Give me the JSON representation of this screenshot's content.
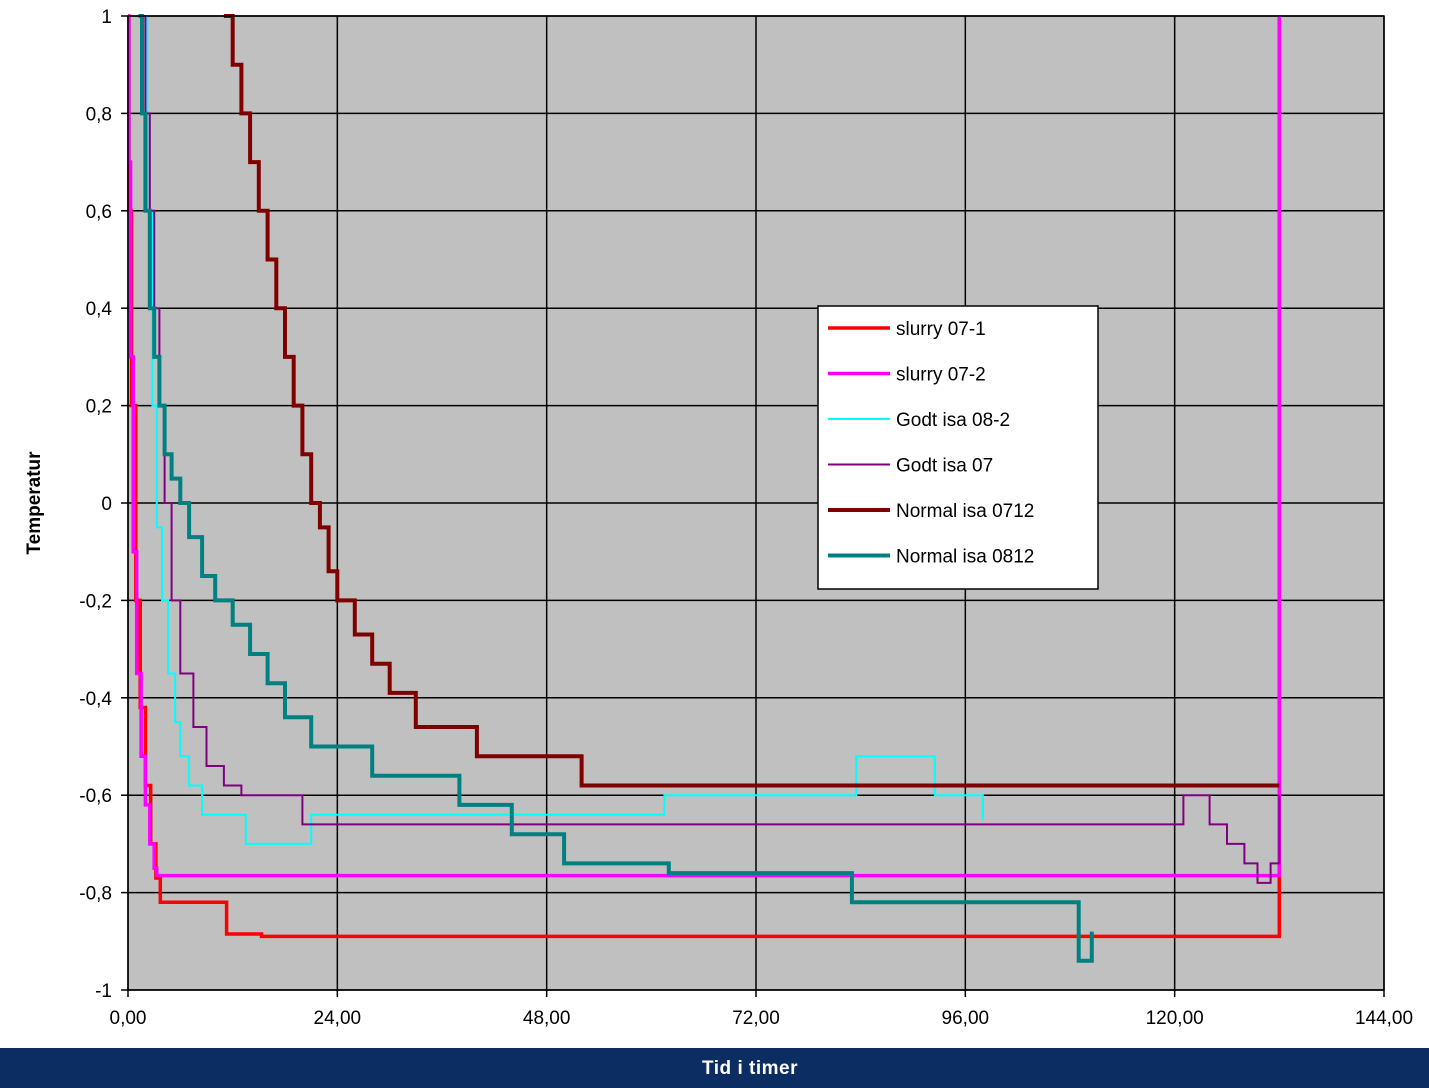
{
  "chart_data": {
    "type": "line",
    "xlabel": "Tid i timer",
    "ylabel": "Temperatur",
    "xlim": [
      0,
      144
    ],
    "ylim": [
      -1,
      1
    ],
    "x_ticks": [
      "0,00",
      "24,00",
      "48,00",
      "72,00",
      "96,00",
      "120,00",
      "144,00"
    ],
    "y_ticks": [
      "1",
      "0,8",
      "0,6",
      "0,4",
      "0,2",
      "0",
      "-0,2",
      "-0,4",
      "-0,6",
      "-0,8",
      "-1"
    ],
    "grid": true,
    "plot_background": "#c0c0c0",
    "legend_position": "center-right",
    "series": [
      {
        "name": "slurry 07-1",
        "color": "#ff0000",
        "x": [
          0,
          0.1,
          0.4,
          0.9,
          1.4,
          2.0,
          2.6,
          3.2,
          3.7,
          3.8,
          10.8,
          11.3,
          15.1,
          15.3,
          131.9,
          132.0
        ],
        "y": [
          1.0,
          0.6,
          0.2,
          -0.2,
          -0.42,
          -0.58,
          -0.7,
          -0.77,
          -0.82,
          -0.82,
          -0.82,
          -0.885,
          -0.885,
          -0.89,
          -0.89,
          1.0
        ]
      },
      {
        "name": "slurry 07-2",
        "color": "#ff00ff",
        "x": [
          0,
          0.1,
          0.3,
          0.6,
          1.0,
          1.5,
          2.0,
          2.5,
          3.0,
          3.3,
          131.9,
          132.0
        ],
        "y": [
          1.0,
          0.7,
          0.3,
          -0.1,
          -0.35,
          -0.52,
          -0.62,
          -0.7,
          -0.75,
          -0.765,
          -0.765,
          1.0
        ]
      },
      {
        "name": "Godt isa 08-2",
        "color": "#00ffff",
        "x": [
          1.8,
          2.2,
          2.8,
          3.3,
          3.9,
          4.6,
          5.4,
          6.0,
          7.0,
          8.5,
          11.0,
          13.5,
          17.5,
          21.0,
          58.0,
          61.5,
          82.0,
          83.5,
          90.0,
          92.5,
          96.0,
          98.0
        ],
        "y": [
          1.0,
          0.6,
          0.2,
          -0.05,
          -0.2,
          -0.35,
          -0.45,
          -0.52,
          -0.58,
          -0.64,
          -0.64,
          -0.7,
          -0.7,
          -0.64,
          -0.64,
          -0.6,
          -0.6,
          -0.52,
          -0.52,
          -0.6,
          -0.6,
          -0.65
        ]
      },
      {
        "name": "Godt isa 07",
        "color": "#800080",
        "x": [
          1.5,
          2.0,
          2.5,
          3.0,
          3.6,
          4.2,
          5.0,
          6.0,
          7.5,
          9.0,
          11.0,
          13.0,
          16.0,
          18.0,
          20.0,
          25.0,
          113.0,
          121.0,
          124.0,
          126.0,
          128.0,
          129.5,
          131.0,
          132.0
        ],
        "y": [
          1.0,
          0.8,
          0.6,
          0.4,
          0.2,
          0.0,
          -0.2,
          -0.35,
          -0.46,
          -0.54,
          -0.58,
          -0.6,
          -0.6,
          -0.6,
          -0.66,
          -0.66,
          -0.66,
          -0.6,
          -0.66,
          -0.7,
          -0.74,
          -0.78,
          -0.74,
          -0.6
        ]
      },
      {
        "name": "Normal isa 0712",
        "color": "#800000",
        "x": [
          11.0,
          12.0,
          13.0,
          14.0,
          15.0,
          16.0,
          17.0,
          18.0,
          19.0,
          20.0,
          21.0,
          22.0,
          23.0,
          24.0,
          26.0,
          28.0,
          30.0,
          33.0,
          36.0,
          40.0,
          46.0,
          50.0,
          52.0,
          132.0
        ],
        "y": [
          1.0,
          0.9,
          0.8,
          0.7,
          0.6,
          0.5,
          0.4,
          0.3,
          0.2,
          0.1,
          0.0,
          -0.05,
          -0.14,
          -0.2,
          -0.27,
          -0.33,
          -0.39,
          -0.46,
          -0.46,
          -0.52,
          -0.52,
          -0.52,
          -0.58,
          -0.58
        ]
      },
      {
        "name": "Normal isa 0812",
        "color": "#008080",
        "x": [
          1.2,
          1.6,
          2.0,
          2.5,
          3.0,
          3.6,
          4.2,
          5.0,
          6.0,
          7.0,
          8.5,
          10.0,
          12.0,
          14.0,
          16.0,
          18.0,
          21.0,
          24.0,
          28.0,
          33.0,
          38.0,
          44.0,
          50.0,
          55.0,
          62.0,
          70.0,
          83.0,
          103.0,
          109.0,
          110.5
        ],
        "y": [
          1.0,
          0.8,
          0.6,
          0.4,
          0.3,
          0.2,
          0.1,
          0.05,
          0.0,
          -0.07,
          -0.15,
          -0.2,
          -0.25,
          -0.31,
          -0.37,
          -0.44,
          -0.5,
          -0.5,
          -0.56,
          -0.56,
          -0.62,
          -0.68,
          -0.74,
          -0.74,
          -0.76,
          -0.76,
          -0.82,
          -0.82,
          -0.94,
          -0.88
        ]
      }
    ]
  }
}
